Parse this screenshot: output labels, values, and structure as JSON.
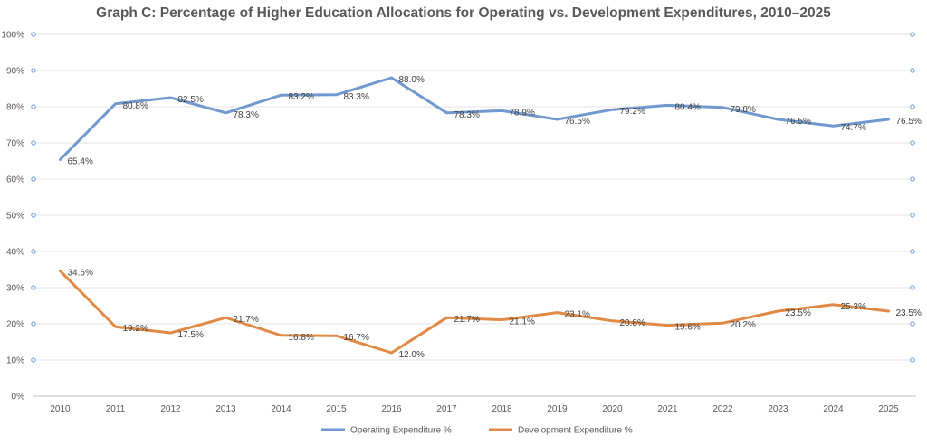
{
  "chart_data": {
    "type": "line",
    "title": "Graph C: Percentage of Higher Education Allocations for Operating vs. Development Expenditures, 2010–2025",
    "xlabel": "",
    "ylabel": "",
    "ylim": [
      0,
      100
    ],
    "y_ticks": [
      "0%",
      "10%",
      "20%",
      "30%",
      "40%",
      "50%",
      "60%",
      "70%",
      "80%",
      "90%",
      "100%"
    ],
    "x": [
      "2010",
      "2011",
      "2012",
      "2013",
      "2014",
      "2015",
      "2016",
      "2017",
      "2018",
      "2019",
      "2020",
      "2021",
      "2022",
      "2023",
      "2024",
      "2025"
    ],
    "grid": true,
    "legend_position": "bottom",
    "series": [
      {
        "name": "Operating Expenditure %",
        "color": "#7199cf",
        "values": [
          65.4,
          80.8,
          82.5,
          78.3,
          83.2,
          83.3,
          88.0,
          78.3,
          78.9,
          76.5,
          79.2,
          80.4,
          79.8,
          76.5,
          74.7,
          76.5
        ],
        "labels": [
          "65.4%",
          "80.8%",
          "82.5%",
          "78.3%",
          "83.2%",
          "83.3%",
          "88.0%",
          "78.3%",
          "78.9%",
          "76.5%",
          "79.2%",
          "80.4%",
          "79.8%",
          "76.5%",
          "74.7%",
          "76.5%"
        ]
      },
      {
        "name": "Development Expenditure %",
        "color": "#e08a45",
        "values": [
          34.6,
          19.2,
          17.5,
          21.7,
          16.8,
          16.7,
          12.0,
          21.7,
          21.1,
          23.1,
          20.8,
          19.6,
          20.2,
          23.5,
          25.3,
          23.5
        ],
        "labels": [
          "34.6%",
          "19.2%",
          "17.5%",
          "21.7%",
          "16.8%",
          "16.7%",
          "12.0%",
          "21.7%",
          "21.1%",
          "23.1%",
          "20.8%",
          "19.6%",
          "20.2%",
          "23.5%",
          "25.3%",
          "23.5%"
        ]
      }
    ]
  }
}
